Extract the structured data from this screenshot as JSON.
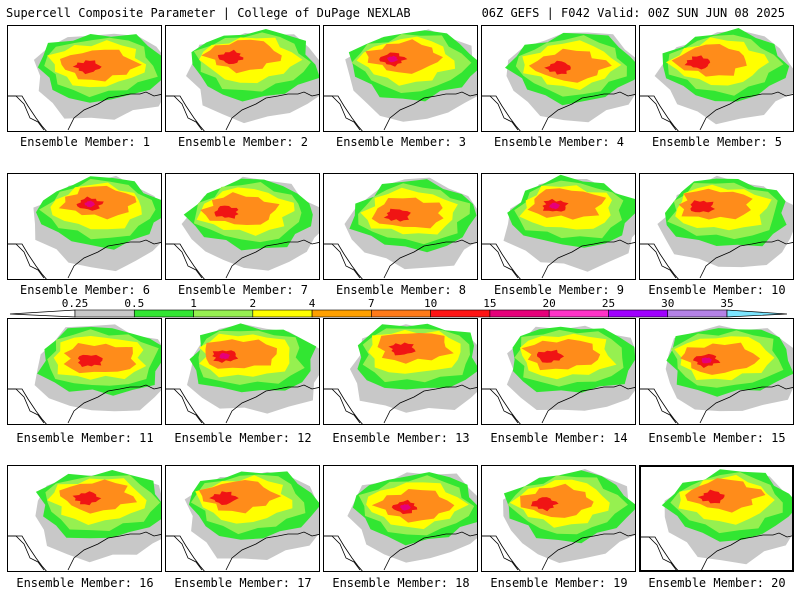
{
  "header": {
    "left": "Supercell Composite Parameter | College of DuPage NEXLAB",
    "right": "06Z GEFS | F042 Valid: 00Z SUN JUN 08 2025"
  },
  "panels": [
    {
      "label": "Ensemble Member: 1"
    },
    {
      "label": "Ensemble Member: 2"
    },
    {
      "label": "Ensemble Member: 3"
    },
    {
      "label": "Ensemble Member: 4"
    },
    {
      "label": "Ensemble Member: 5"
    },
    {
      "label": "Ensemble Member: 6"
    },
    {
      "label": "Ensemble Member: 7"
    },
    {
      "label": "Ensemble Member: 8"
    },
    {
      "label": "Ensemble Member: 9"
    },
    {
      "label": "Ensemble Member: 10"
    },
    {
      "label": "Ensemble Member: 11"
    },
    {
      "label": "Ensemble Member: 12"
    },
    {
      "label": "Ensemble Member: 13"
    },
    {
      "label": "Ensemble Member: 14"
    },
    {
      "label": "Ensemble Member: 15"
    },
    {
      "label": "Ensemble Member: 16"
    },
    {
      "label": "Ensemble Member: 17"
    },
    {
      "label": "Ensemble Member: 18"
    },
    {
      "label": "Ensemble Member: 19"
    },
    {
      "label": "Ensemble Member: 20",
      "selected": true
    }
  ],
  "colorbar": {
    "labels": [
      "0.25",
      "0.5",
      "1",
      "2",
      "4",
      "7",
      "10",
      "15",
      "20",
      "25",
      "30",
      "35"
    ],
    "colors": [
      "#c8c8c8",
      "#32e632",
      "#96f050",
      "#ffff00",
      "#ffa000",
      "#ff7a1a",
      "#ff1414",
      "#e6007a",
      "#ff32c8",
      "#a000ff",
      "#b482e6",
      "#7de6ff"
    ]
  },
  "layer_colors": {
    "gray": "#c8c8c8",
    "green": "#32e632",
    "lightgreen": "#96f050",
    "yellow": "#ffff00",
    "orange": "#ff8c1a",
    "red": "#f01414",
    "magenta": "#e6007a"
  }
}
